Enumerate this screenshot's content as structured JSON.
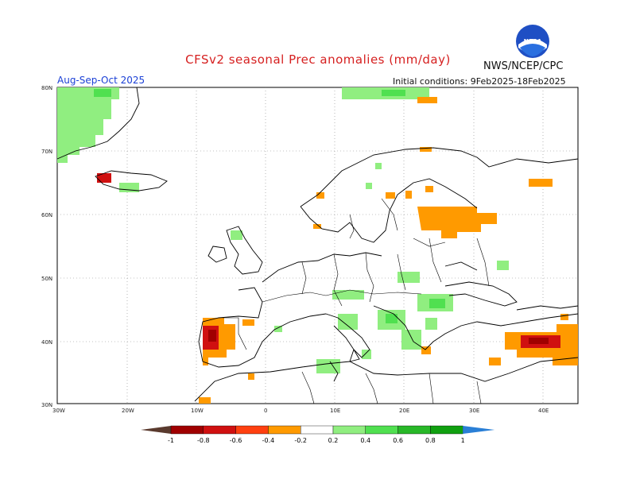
{
  "title": "CFSv2 seasonal Prec anomalies (mm/day)",
  "agency": "NWS/NCEP/CPC",
  "season": "Aug-Sep-Oct 2025",
  "initial_conditions": "Initial conditions: 9Feb2025-18Feb2025",
  "logo_text": "NOAA",
  "lat_labels": [
    "80N",
    "70N",
    "60N",
    "50N",
    "40N",
    "30N"
  ],
  "lon_labels": [
    "30W",
    "20W",
    "10W",
    "0",
    "10E",
    "20E",
    "30E",
    "40E"
  ],
  "colorbar": {
    "labels": [
      "-1",
      "-0.8",
      "-0.6",
      "-0.4",
      "-0.2",
      "0.2",
      "0.4",
      "0.6",
      "0.8",
      "1"
    ],
    "colors": [
      "#5a3a2e",
      "#a00000",
      "#d01010",
      "#ff4010",
      "#ff9a00",
      "#ffffff",
      "#90ee80",
      "#50e050",
      "#28b828",
      "#10a010",
      "#2a7fd6"
    ]
  }
}
